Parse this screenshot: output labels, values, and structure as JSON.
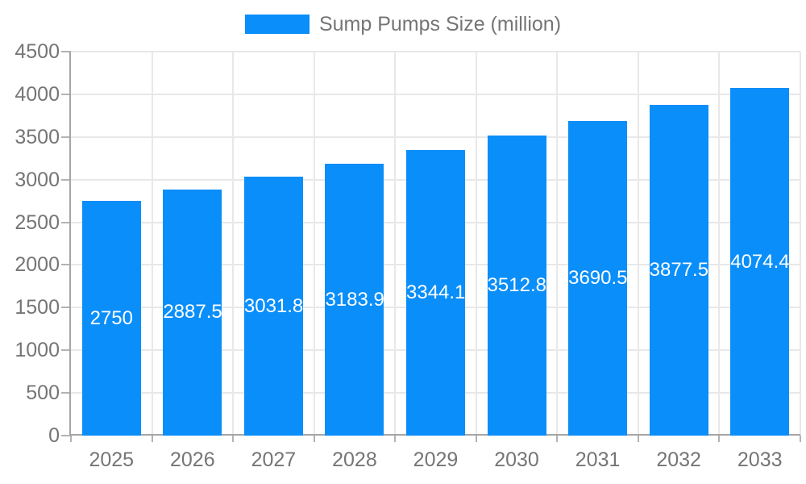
{
  "legend": {
    "label": "Sump Pumps Size (million)"
  },
  "colors": {
    "bar": "#0a8ef9",
    "grid": "#e8e8e8",
    "axis": "#a5a5a5",
    "tick": "#b3b3b3",
    "text": "#757575",
    "bar_label_text": "#ffffff",
    "background": "#ffffff"
  },
  "chart_data": {
    "type": "bar",
    "title": "Sump Pumps Size (million)",
    "legend_position": "top",
    "grid": true,
    "xlabel": "",
    "ylabel": "",
    "categories": [
      "2025",
      "2026",
      "2027",
      "2028",
      "2029",
      "2030",
      "2031",
      "2032",
      "2033"
    ],
    "series": [
      {
        "name": "Sump Pumps Size (million)",
        "values": [
          2750,
          2887.5,
          3031.87,
          3183.96,
          3344.16,
          3512.87,
          3690.51,
          3877.54,
          4074.42
        ],
        "value_labels": [
          "2750",
          "2887.5",
          "3031.87",
          "3183.96",
          "3344.16",
          "3512.87",
          "3690.51",
          "3877.54",
          "4074.42"
        ]
      }
    ],
    "ylim": [
      0,
      4500
    ],
    "yticks": [
      0,
      500,
      1000,
      1500,
      2000,
      2500,
      3000,
      3500,
      4000,
      4500
    ]
  }
}
